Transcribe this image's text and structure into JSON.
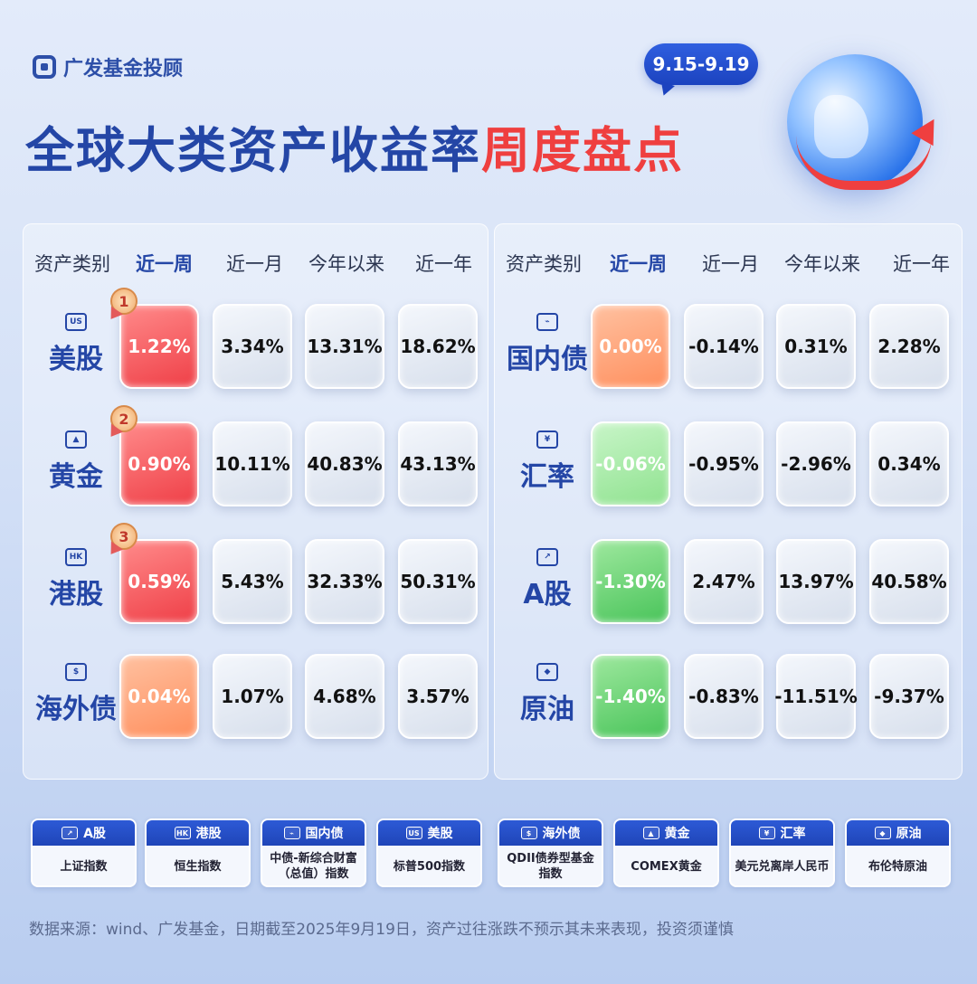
{
  "brand": "广发基金投顾",
  "title_main": "全球大类资产收益率",
  "title_highlight": "周度盘点",
  "date_range": "9.15-9.19",
  "columns": [
    "资产类别",
    "近一周",
    "近一月",
    "今年以来",
    "近一年"
  ],
  "left_rows": [
    {
      "name": "美股",
      "icon": "US",
      "rank": "1",
      "week": "1.22%",
      "month": "3.34%",
      "ytd": "13.31%",
      "year": "18.62%",
      "tone": "red"
    },
    {
      "name": "黄金",
      "icon": "gold-bar-icon",
      "rank": "2",
      "week": "0.90%",
      "month": "10.11%",
      "ytd": "40.83%",
      "year": "43.13%",
      "tone": "red"
    },
    {
      "name": "港股",
      "icon": "HK",
      "rank": "3",
      "week": "0.59%",
      "month": "5.43%",
      "ytd": "32.33%",
      "year": "50.31%",
      "tone": "red"
    },
    {
      "name": "海外债",
      "icon": "$",
      "rank": "",
      "week": "0.04%",
      "month": "1.07%",
      "ytd": "4.68%",
      "year": "3.57%",
      "tone": "orange"
    }
  ],
  "right_rows": [
    {
      "name": "国内债",
      "icon": "bond-chart-icon",
      "week": "0.00%",
      "month": "-0.14%",
      "ytd": "0.31%",
      "year": "2.28%",
      "tone": "orange"
    },
    {
      "name": "汇率",
      "icon": "¥",
      "week": "-0.06%",
      "month": "-0.95%",
      "ytd": "-2.96%",
      "year": "0.34%",
      "tone": "green-l"
    },
    {
      "name": "A股",
      "icon": "bar-chart-icon",
      "week": "-1.30%",
      "month": "2.47%",
      "ytd": "13.97%",
      "year": "40.58%",
      "tone": "green"
    },
    {
      "name": "原油",
      "icon": "oil-drop-icon",
      "week": "-1.40%",
      "month": "-0.83%",
      "ytd": "-11.51%",
      "year": "-9.37%",
      "tone": "green"
    }
  ],
  "legend": [
    {
      "name": "A股",
      "icon": "bar-chart-icon",
      "desc": "上证指数"
    },
    {
      "name": "港股",
      "icon": "HK",
      "desc": "恒生指数"
    },
    {
      "name": "国内债",
      "icon": "bond-chart-icon",
      "desc": "中债-新综合财富（总值）指数"
    },
    {
      "name": "美股",
      "icon": "US",
      "desc": "标普500指数"
    },
    {
      "name": "海外债",
      "icon": "$",
      "desc": "QDII债券型基金指数"
    },
    {
      "name": "黄金",
      "icon": "gold-bar-icon",
      "desc": "COMEX黄金"
    },
    {
      "name": "汇率",
      "icon": "¥",
      "desc": "美元兑离岸人民币"
    },
    {
      "name": "原油",
      "icon": "oil-drop-icon",
      "desc": "布伦特原油"
    }
  ],
  "footer": "数据来源：wind、广发基金，日期截至2025年9月19日，资产过往涨跌不预示其未来表现，投资须谨慎"
}
